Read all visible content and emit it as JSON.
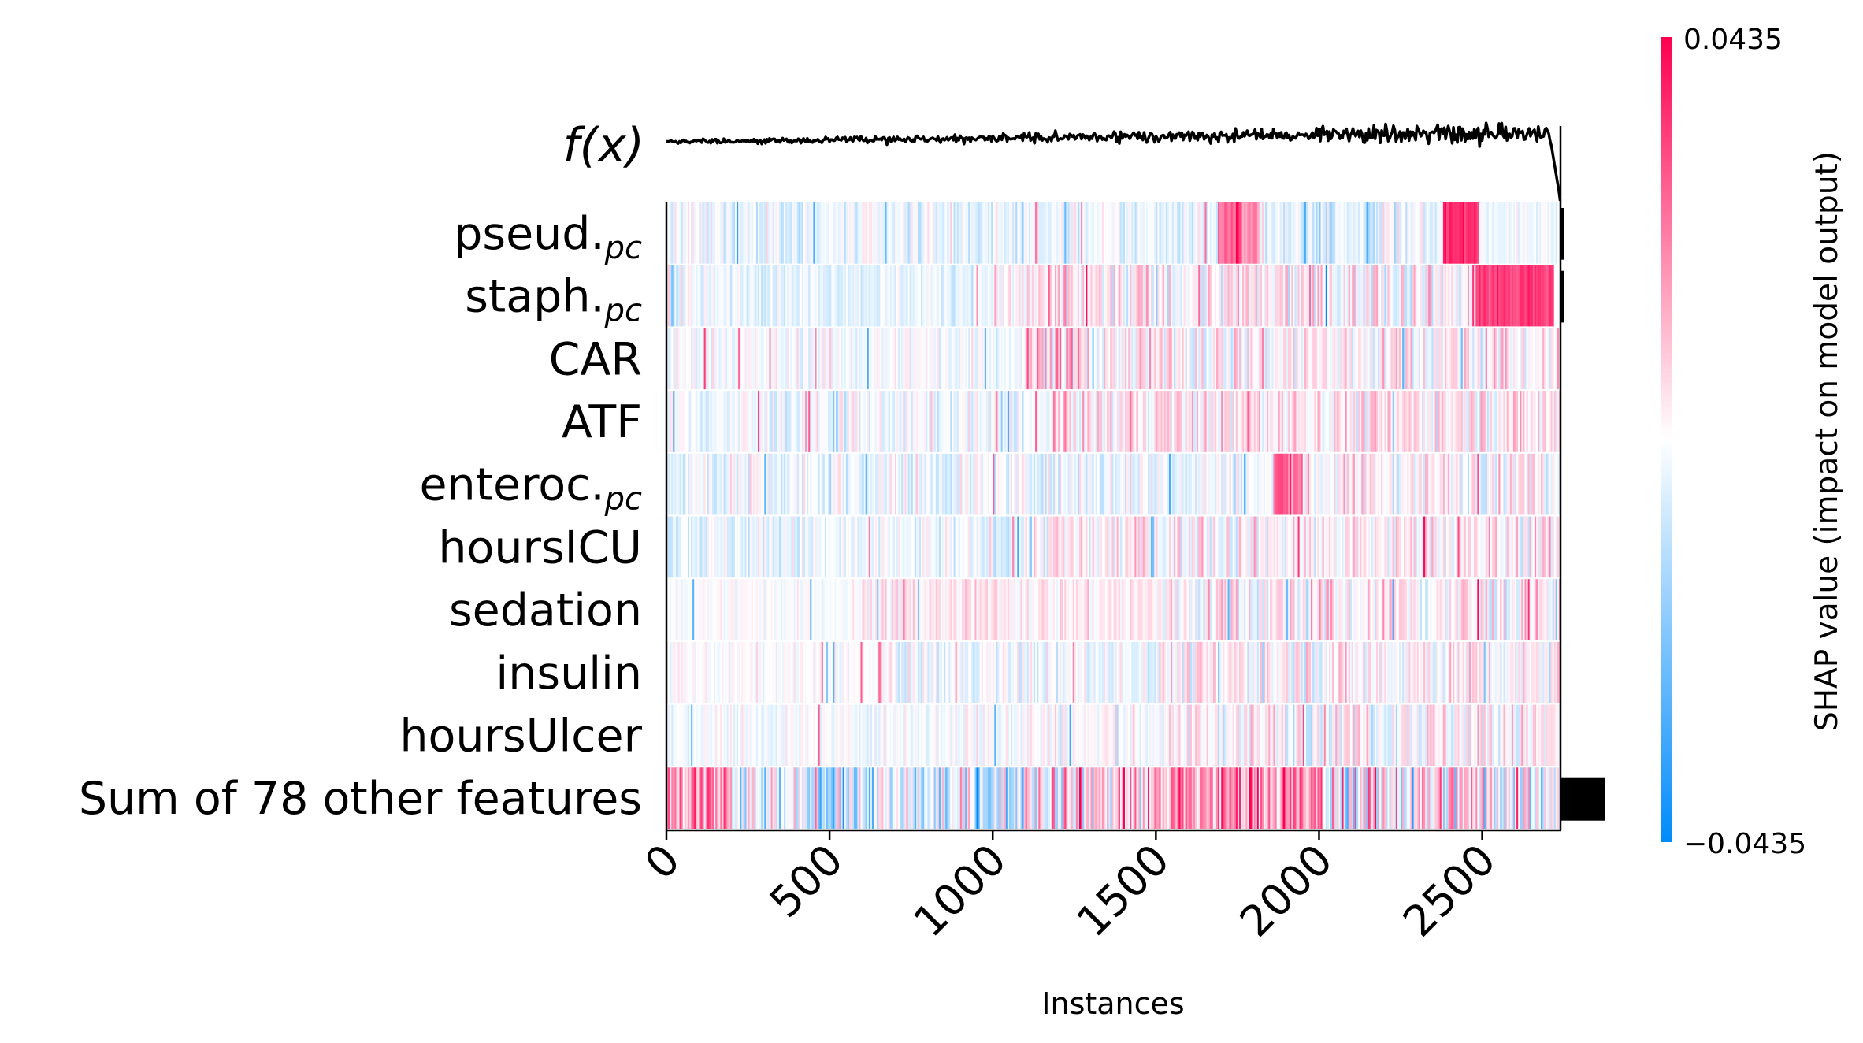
{
  "chart_data": {
    "type": "heatmap",
    "title": "",
    "xlabel": "Instances",
    "ylabel": "",
    "xlim": [
      0,
      2740
    ],
    "x_ticks": [
      "0",
      "500",
      "1000",
      "1500",
      "2000",
      "2500"
    ],
    "x_tick_values": [
      0,
      500,
      1000,
      1500,
      2000,
      2500
    ],
    "n_instances": 2740,
    "fx_label": "f(x)",
    "features": [
      {
        "name": "pseud.",
        "subscript": "pc",
        "importance": 0.006
      },
      {
        "name": "staph.",
        "subscript": "pc",
        "importance": 0.006
      },
      {
        "name": "CAR",
        "subscript": "",
        "importance": 0.0
      },
      {
        "name": "ATF",
        "subscript": "",
        "importance": 0.0
      },
      {
        "name": "enteroc.",
        "subscript": "pc",
        "importance": 0.0
      },
      {
        "name": "hoursICU",
        "subscript": "",
        "importance": 0.0
      },
      {
        "name": "sedation",
        "subscript": "",
        "importance": 0.0
      },
      {
        "name": "insulin",
        "subscript": "",
        "importance": 0.0
      },
      {
        "name": "hoursUlcer",
        "subscript": "",
        "importance": 0.0
      },
      {
        "name": "Sum of 78 other features",
        "subscript": "",
        "importance": 0.13
      }
    ],
    "colorbar": {
      "title": "SHAP value (impact on model output)",
      "max_label": "0.0435",
      "min_label": "−0.0435",
      "vmin": -0.0435,
      "vmax": 0.0435
    },
    "colors": {
      "positive": "#ff0051",
      "negative": "#008bfb",
      "line": "#000000",
      "bar": "#000000"
    }
  }
}
